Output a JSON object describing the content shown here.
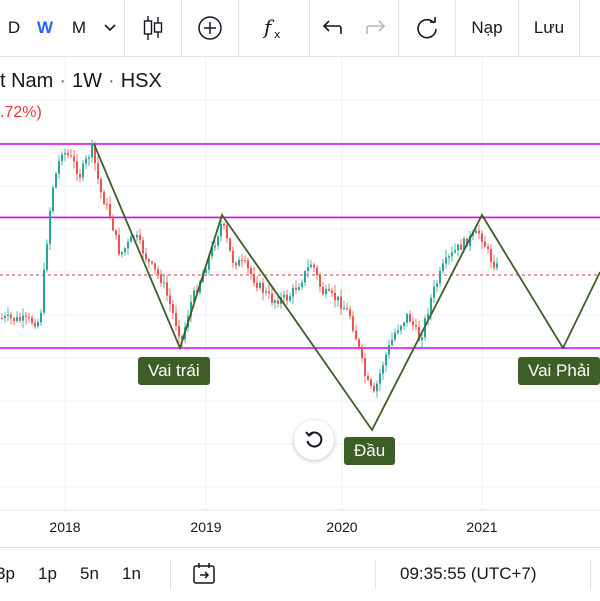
{
  "toolbar": {
    "intervals": [
      "D",
      "W",
      "M"
    ],
    "active_interval": "W",
    "chevron_icon": "chevron-down-icon",
    "candles_icon": "candlestick-icon",
    "add_icon": "plus-circle-icon",
    "fx_icon": "indicators-fx-icon",
    "undo_icon": "undo-icon",
    "redo_icon": "redo-icon",
    "refresh_icon": "refresh-circle-icon",
    "load_label": "Nạp",
    "save_label": "Lưu"
  },
  "symbol": {
    "name_fragment": "t Nam",
    "separator": "·",
    "interval": "1W",
    "exchange": "HSX",
    "change": ".72%)"
  },
  "chart": {
    "annotations": {
      "left_shoulder": "Vai trái",
      "head": "Đầu",
      "right_shoulder": "Vai Phải"
    },
    "x_axis_labels": [
      "2018",
      "2019",
      "2020",
      "2021"
    ],
    "colors": {
      "up": "#26a69a",
      "down": "#ef5350",
      "pattern_line": "#3d5f27",
      "horizontal_lines": "#d500f9",
      "price_line": "#e53935",
      "badge_bg": "#3d5f27",
      "accent": "#2962ff"
    },
    "reset_icon": "reset-rotate-icon"
  },
  "chart_data": {
    "type": "candlestick",
    "title": "",
    "xlabel": "",
    "ylabel": "",
    "x_tick_labels": [
      "2018",
      "2019",
      "2020",
      "2021"
    ],
    "pattern": {
      "name_labels": [
        "Vai trái",
        "Đầu",
        "Vai Phải"
      ],
      "points_relative": [
        {
          "x": "2018-03",
          "y": 1.0
        },
        {
          "x": "2018-11",
          "y": 0.0
        },
        {
          "x": "2019-02",
          "y": 0.64
        },
        {
          "x": "2020-03",
          "y": -0.38
        },
        {
          "x": "2021-01",
          "y": 0.64
        },
        {
          "x": "2021-08",
          "y": 0.0
        },
        {
          "x": "2021-12",
          "y": 0.38
        }
      ]
    },
    "horizontal_levels_relative": [
      1.0,
      0.64,
      0.36,
      0.0
    ],
    "grid": true
  },
  "bottombar": {
    "ranges": [
      "3p",
      "1p",
      "5n",
      "1n"
    ],
    "goto_icon": "go-to-date-icon",
    "clock": "09:35:55 (UTC+7)"
  }
}
